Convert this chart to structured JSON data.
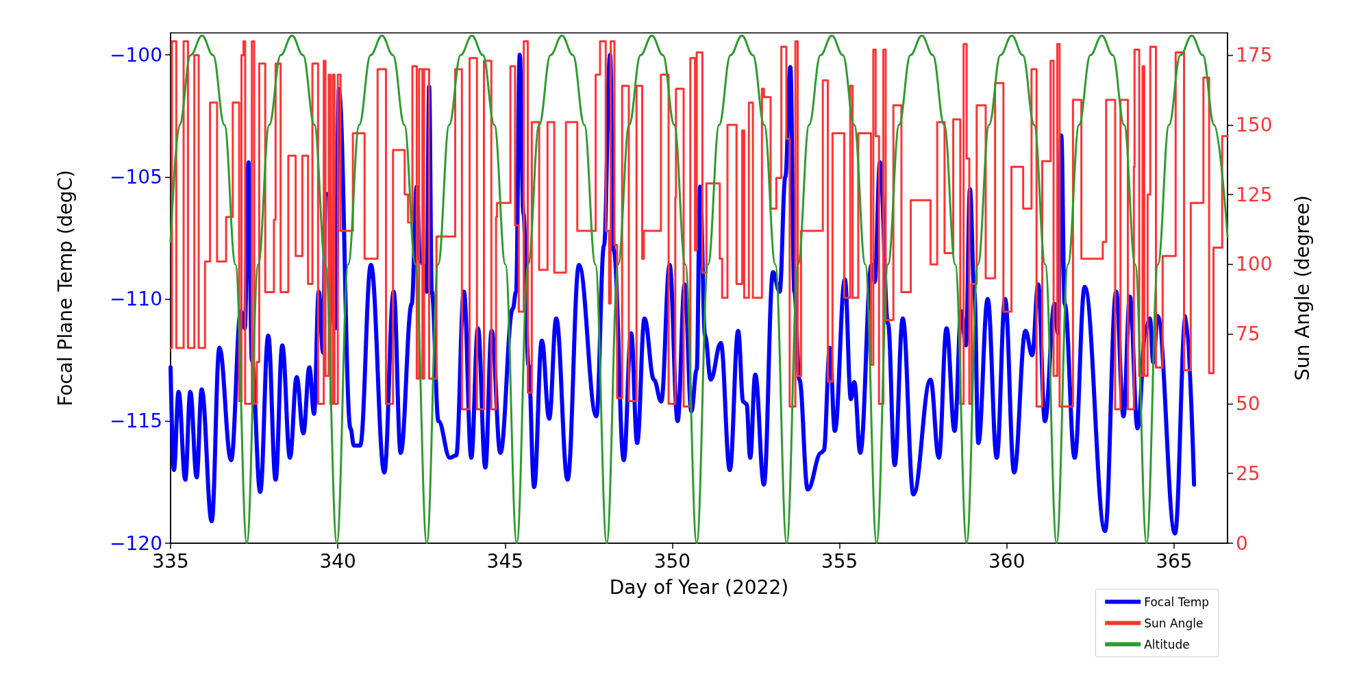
{
  "chart_data": {
    "type": "line",
    "xlabel": "Day of Year (2022)",
    "ylabel": "Focal Plane Temp (degC)",
    "y2label": "Sun Angle (degree)",
    "xlim": [
      335,
      366.6
    ],
    "xticks": [
      335,
      340,
      345,
      350,
      355,
      360,
      365
    ],
    "ylim": [
      -120,
      -99.1
    ],
    "yticks": [
      {
        "value": -120,
        "label": "−120"
      },
      {
        "value": -115,
        "label": "−115"
      },
      {
        "value": -110,
        "label": "−110"
      },
      {
        "value": -105,
        "label": "−105"
      },
      {
        "value": -100,
        "label": "−100"
      }
    ],
    "y2lim": [
      0,
      183
    ],
    "y2ticks": [
      0,
      25,
      50,
      75,
      100,
      125,
      150,
      175
    ],
    "grid": false,
    "marker": "none",
    "line_style": "solid",
    "legend": "bottom right",
    "series": [
      {
        "name": "Focal Temp",
        "axis": "y",
        "color": "#0000ff",
        "x": [
          335.0,
          335.1,
          335.24,
          335.44,
          335.59,
          335.78,
          335.93,
          336.23,
          336.46,
          336.81,
          337.1,
          337.22,
          337.33,
          337.43,
          337.68,
          337.92,
          338.14,
          338.34,
          338.57,
          338.77,
          338.97,
          339.15,
          339.29,
          339.43,
          339.56,
          339.63,
          339.75,
          339.78,
          339.93,
          340.03,
          340.38,
          340.48,
          340.67,
          340.99,
          341.39,
          341.67,
          341.88,
          342.21,
          342.36,
          342.46,
          342.61,
          342.66,
          342.73,
          342.81,
          343.01,
          343.35,
          343.54,
          343.77,
          343.99,
          344.19,
          344.41,
          344.6,
          344.86,
          345.23,
          345.33,
          345.44,
          345.55,
          345.7,
          345.87,
          346.1,
          346.32,
          346.53,
          346.87,
          347.21,
          347.73,
          347.96,
          348.14,
          348.25,
          348.55,
          348.77,
          348.95,
          349.17,
          349.45,
          349.67,
          349.92,
          350.16,
          350.37,
          350.57,
          350.73,
          350.83,
          350.98,
          351.15,
          351.45,
          351.72,
          351.97,
          352.12,
          352.22,
          352.33,
          352.48,
          352.74,
          353.01,
          353.21,
          353.38,
          353.53,
          353.65,
          353.8,
          354.05,
          354.45,
          354.53,
          354.71,
          354.86,
          355.16,
          355.34,
          355.44,
          355.62,
          355.96,
          356.05,
          356.21,
          356.45,
          356.65,
          356.89,
          357.21,
          357.72,
          357.97,
          358.2,
          358.44,
          358.64,
          358.78,
          358.9,
          359.03,
          359.15,
          359.43,
          359.7,
          359.95,
          360.22,
          360.56,
          360.76,
          360.94,
          361.14,
          361.43,
          361.53,
          361.63,
          361.73,
          362.03,
          362.33,
          362.94,
          363.27,
          363.49,
          363.68,
          363.91,
          364.16,
          364.28,
          364.38,
          364.51,
          365.03,
          365.35,
          365.6
        ],
        "values": [
          -112.8,
          -117.0,
          -113.8,
          -117.4,
          -113.8,
          -117.3,
          -113.7,
          -119.1,
          -112.0,
          -116.6,
          -110.5,
          -111.2,
          -104.4,
          -112.5,
          -117.9,
          -111.5,
          -117.4,
          -111.9,
          -116.5,
          -113.2,
          -115.5,
          -112.8,
          -114.7,
          -109.7,
          -112.2,
          -105.7,
          -105.7,
          -110.3,
          -111.2,
          -101.4,
          -115.3,
          -116.0,
          -116.0,
          -108.6,
          -117.1,
          -109.7,
          -116.3,
          -110.2,
          -105.4,
          -108.4,
          -108.7,
          -109.7,
          -101.3,
          -109.7,
          -115.0,
          -116.5,
          -116.4,
          -109.7,
          -116.5,
          -111.2,
          -116.9,
          -111.3,
          -116.3,
          -110.4,
          -109.7,
          -100.0,
          -106.5,
          -112.7,
          -117.7,
          -111.7,
          -114.9,
          -110.8,
          -117.4,
          -108.6,
          -114.8,
          -107.8,
          -100.0,
          -108.0,
          -116.6,
          -111.4,
          -115.9,
          -110.8,
          -113.3,
          -114.2,
          -108.6,
          -115.0,
          -109.4,
          -114.6,
          -112.9,
          -105.4,
          -111.5,
          -113.3,
          -111.8,
          -117.0,
          -111.3,
          -114.2,
          -114.3,
          -116.5,
          -113.1,
          -117.6,
          -108.9,
          -109.7,
          -105.0,
          -100.5,
          -109.7,
          -113.3,
          -117.8,
          -116.3,
          -116.2,
          -112.0,
          -115.4,
          -109.2,
          -114.1,
          -113.4,
          -116.3,
          -108.6,
          -109.3,
          -104.4,
          -111.0,
          -116.8,
          -110.8,
          -118.0,
          -113.3,
          -116.5,
          -111.2,
          -115.4,
          -110.5,
          -111.9,
          -105.5,
          -109.7,
          -115.9,
          -110.0,
          -116.5,
          -110.0,
          -117.1,
          -111.3,
          -112.3,
          -109.4,
          -115.0,
          -110.2,
          -111.4,
          -103.3,
          -110.2,
          -116.5,
          -109.5,
          -119.5,
          -109.7,
          -114.8,
          -109.9,
          -115.3,
          -111.2,
          -110.8,
          -112.6,
          -110.7,
          -119.6,
          -110.7,
          -117.6
        ]
      },
      {
        "name": "Sun Angle",
        "type": "step",
        "axis": "y2",
        "color": "#ff3333",
        "x": [
          335.0,
          335.04,
          335.17,
          335.39,
          335.52,
          335.71,
          335.84,
          336.03,
          336.18,
          336.39,
          336.66,
          336.86,
          337.05,
          337.12,
          337.18,
          337.23,
          337.43,
          337.5,
          337.58,
          337.65,
          337.83,
          338.09,
          338.14,
          338.29,
          338.52,
          338.74,
          338.94,
          339.11,
          339.24,
          339.41,
          339.58,
          339.63,
          339.73,
          339.78,
          339.85,
          339.9,
          340.0,
          340.08,
          340.45,
          340.8,
          341.19,
          341.44,
          341.65,
          342.0,
          342.1,
          342.23,
          342.36,
          342.43,
          342.53,
          342.58,
          342.73,
          342.95,
          343.51,
          343.71,
          343.94,
          344.16,
          344.37,
          344.59,
          344.73,
          344.76,
          345.16,
          345.3,
          345.41,
          345.56,
          345.68,
          345.8,
          346.02,
          346.27,
          346.47,
          346.82,
          347.16,
          347.71,
          347.84,
          348.01,
          348.11,
          348.16,
          348.27,
          348.35,
          348.5,
          348.7,
          348.93,
          349.1,
          349.15,
          349.66,
          349.89,
          350.09,
          350.11,
          350.34,
          350.54,
          350.68,
          350.73,
          350.9,
          351.02,
          351.42,
          351.49,
          351.65,
          351.92,
          352.09,
          352.15,
          352.29,
          352.41,
          352.68,
          352.74,
          352.94,
          353.11,
          353.26,
          353.41,
          353.51,
          353.68,
          353.75,
          353.85,
          354.5,
          354.65,
          354.79,
          355.14,
          355.32,
          355.39,
          355.56,
          355.94,
          356.01,
          356.08,
          356.18,
          356.31,
          356.38,
          356.61,
          356.85,
          357.13,
          357.72,
          357.92,
          358.14,
          358.4,
          358.61,
          358.71,
          358.8,
          358.88,
          358.95,
          359.1,
          359.37,
          359.65,
          359.9,
          360.14,
          360.49,
          360.74,
          360.89,
          361.06,
          361.31,
          361.4,
          361.51,
          361.58,
          361.98,
          362.23,
          362.87,
          362.97,
          363.24,
          363.4,
          363.62,
          363.8,
          363.82,
          363.96,
          364.06,
          364.11,
          364.21,
          364.29,
          364.46,
          364.66,
          365.05,
          365.3,
          365.5,
          365.88,
          366.05,
          366.18,
          366.44,
          366.6
        ],
        "values": [
          70,
          180,
          70,
          180,
          70,
          175,
          70,
          101,
          158,
          101,
          117,
          158,
          51,
          175,
          180,
          50,
          180,
          50,
          65,
          172,
          90,
          116,
          172,
          90,
          139,
          103,
          139,
          93,
          172,
          50,
          173,
          60,
          168,
          50,
          168,
          50,
          168,
          112,
          147,
          102,
          170,
          50,
          141,
          125,
          115,
          171,
          59,
          170,
          59,
          170,
          59,
          110,
          170,
          48,
          174,
          48,
          173,
          48,
          117,
          122,
          171,
          114,
          83,
          180,
          54,
          151,
          98,
          151,
          97,
          151,
          112,
          168,
          180,
          112,
          86,
          180,
          107,
          52,
          164,
          51,
          164,
          102,
          112,
          168,
          50,
          124,
          163,
          49,
          174,
          105,
          176,
          97,
          129,
          102,
          88,
          150,
          93,
          148,
          88,
          158,
          88,
          163,
          160,
          120,
          131,
          178,
          145,
          49,
          180,
          60,
          112,
          166,
          58,
          147,
          88,
          164,
          88,
          147,
          64,
          177,
          146,
          50,
          177,
          80,
          157,
          90,
          123,
          100,
          151,
          104,
          152,
          50,
          179,
          138,
          50,
          93,
          157,
          95,
          165,
          83,
          135,
          120,
          170,
          49,
          137,
          173,
          60,
          179,
          49,
          159,
          102,
          108,
          159,
          48,
          159,
          48,
          135,
          177,
          60,
          171,
          60,
          125,
          178,
          63,
          103,
          176,
          62,
          122,
          167,
          61,
          106,
          146,
          146
        ]
      },
      {
        "name": "Altitude",
        "axis": "y2",
        "color": "#2e9b2e",
        "x": [
          335.0,
          335.27,
          335.6,
          335.94,
          336.27,
          336.61,
          336.94,
          337.28,
          337.62,
          337.95,
          338.29,
          338.63,
          338.96,
          339.3,
          339.63,
          339.97,
          340.31,
          340.64,
          340.98,
          341.32,
          341.65,
          341.99,
          342.32,
          342.66,
          343.0,
          343.33,
          343.67,
          344.01,
          344.34,
          344.68,
          345.01,
          345.35,
          345.69,
          346.02,
          346.36,
          346.7,
          347.03,
          347.37,
          347.7,
          348.04,
          348.38,
          348.71,
          349.05,
          349.39,
          349.72,
          350.06,
          350.39,
          350.73,
          351.07,
          351.4,
          351.74,
          352.08,
          352.41,
          352.75,
          353.08,
          353.42,
          353.76,
          354.09,
          354.43,
          354.77,
          355.1,
          355.44,
          355.77,
          356.11,
          356.45,
          356.78,
          357.12,
          357.46,
          357.79,
          358.13,
          358.46,
          358.8,
          359.14,
          359.47,
          359.81,
          360.15,
          360.48,
          360.82,
          361.15,
          361.49,
          361.83,
          362.16,
          362.5,
          362.84,
          363.17,
          363.51,
          363.84,
          364.18,
          364.52,
          364.85,
          365.19,
          365.53,
          365.86,
          366.2,
          366.6
        ],
        "values": [
          108,
          150,
          175,
          182,
          175,
          150,
          100,
          0,
          100,
          150,
          175,
          182,
          175,
          150,
          100,
          0,
          100,
          150,
          175,
          182,
          175,
          150,
          100,
          0,
          100,
          150,
          175,
          182,
          175,
          150,
          100,
          0,
          100,
          150,
          175,
          182,
          175,
          150,
          100,
          0,
          100,
          150,
          175,
          182,
          175,
          150,
          100,
          0,
          100,
          150,
          175,
          182,
          175,
          150,
          100,
          0,
          100,
          150,
          175,
          182,
          175,
          150,
          100,
          0,
          100,
          150,
          175,
          182,
          175,
          150,
          100,
          0,
          100,
          150,
          175,
          182,
          175,
          150,
          100,
          0,
          100,
          150,
          175,
          182,
          175,
          150,
          100,
          0,
          100,
          150,
          175,
          182,
          175,
          150,
          110
        ]
      }
    ]
  }
}
